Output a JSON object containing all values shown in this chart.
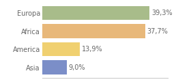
{
  "categories": [
    "Europa",
    "Africa",
    "America",
    "Asia"
  ],
  "values": [
    39.3,
    37.7,
    13.9,
    9.0
  ],
  "labels": [
    "39,3%",
    "37,7%",
    "13,9%",
    "9,0%"
  ],
  "colors": [
    "#a8bc8a",
    "#e8b87a",
    "#f0d070",
    "#7b8ec8"
  ],
  "background_color": "#ffffff",
  "xlim": [
    0,
    46
  ],
  "bar_height": 0.78,
  "label_fontsize": 7.0,
  "tick_fontsize": 7.0,
  "label_color": "#666666",
  "tick_color": "#666666"
}
